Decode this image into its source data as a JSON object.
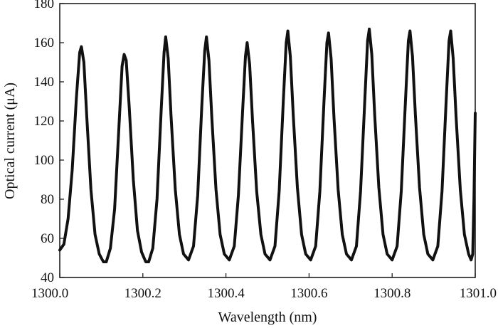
{
  "chart_data": {
    "type": "line",
    "title": "",
    "xlabel": "Wavelength (nm)",
    "ylabel": "Optical current (μA)",
    "xlim": [
      1300.0,
      1301.0
    ],
    "ylim": [
      40,
      180
    ],
    "xticks": [
      "1300.0",
      "1300.2",
      "1300.4",
      "1300.6",
      "1300.8",
      "1301.0"
    ],
    "yticks": [
      "40",
      "60",
      "80",
      "100",
      "120",
      "140",
      "160",
      "180"
    ],
    "grid": false,
    "legend": "none",
    "line_color": "#111111",
    "series": [
      {
        "points": [
          [
            1300.0,
            54
          ],
          [
            1300.01,
            57
          ],
          [
            1300.02,
            70
          ],
          [
            1300.03,
            95
          ],
          [
            1300.04,
            132
          ],
          [
            1300.048,
            155
          ],
          [
            1300.052,
            158
          ],
          [
            1300.058,
            150
          ],
          [
            1300.065,
            122
          ],
          [
            1300.075,
            85
          ],
          [
            1300.085,
            62
          ],
          [
            1300.095,
            52
          ],
          [
            1300.105,
            48
          ],
          [
            1300.112,
            48
          ],
          [
            1300.122,
            55
          ],
          [
            1300.132,
            75
          ],
          [
            1300.142,
            115
          ],
          [
            1300.15,
            148
          ],
          [
            1300.155,
            154
          ],
          [
            1300.16,
            151
          ],
          [
            1300.167,
            128
          ],
          [
            1300.177,
            90
          ],
          [
            1300.187,
            64
          ],
          [
            1300.197,
            53
          ],
          [
            1300.207,
            48
          ],
          [
            1300.214,
            48
          ],
          [
            1300.224,
            55
          ],
          [
            1300.234,
            80
          ],
          [
            1300.244,
            125
          ],
          [
            1300.251,
            155
          ],
          [
            1300.255,
            163
          ],
          [
            1300.261,
            152
          ],
          [
            1300.268,
            122
          ],
          [
            1300.278,
            85
          ],
          [
            1300.288,
            62
          ],
          [
            1300.298,
            52
          ],
          [
            1300.31,
            49
          ],
          [
            1300.322,
            56
          ],
          [
            1300.332,
            82
          ],
          [
            1300.342,
            128
          ],
          [
            1300.349,
            156
          ],
          [
            1300.353,
            163
          ],
          [
            1300.359,
            151
          ],
          [
            1300.366,
            122
          ],
          [
            1300.376,
            85
          ],
          [
            1300.386,
            62
          ],
          [
            1300.396,
            52
          ],
          [
            1300.408,
            49
          ],
          [
            1300.42,
            56
          ],
          [
            1300.43,
            82
          ],
          [
            1300.44,
            125
          ],
          [
            1300.447,
            153
          ],
          [
            1300.451,
            160
          ],
          [
            1300.457,
            149
          ],
          [
            1300.464,
            120
          ],
          [
            1300.474,
            84
          ],
          [
            1300.484,
            62
          ],
          [
            1300.494,
            52
          ],
          [
            1300.506,
            49
          ],
          [
            1300.518,
            56
          ],
          [
            1300.528,
            84
          ],
          [
            1300.538,
            130
          ],
          [
            1300.545,
            160
          ],
          [
            1300.549,
            166
          ],
          [
            1300.555,
            153
          ],
          [
            1300.562,
            123
          ],
          [
            1300.572,
            86
          ],
          [
            1300.582,
            62
          ],
          [
            1300.592,
            52
          ],
          [
            1300.604,
            49
          ],
          [
            1300.616,
            56
          ],
          [
            1300.626,
            84
          ],
          [
            1300.636,
            130
          ],
          [
            1300.643,
            160
          ],
          [
            1300.647,
            165
          ],
          [
            1300.653,
            152
          ],
          [
            1300.66,
            122
          ],
          [
            1300.67,
            85
          ],
          [
            1300.68,
            62
          ],
          [
            1300.69,
            52
          ],
          [
            1300.702,
            49
          ],
          [
            1300.714,
            56
          ],
          [
            1300.724,
            84
          ],
          [
            1300.734,
            130
          ],
          [
            1300.741,
            161
          ],
          [
            1300.745,
            167
          ],
          [
            1300.751,
            154
          ],
          [
            1300.758,
            123
          ],
          [
            1300.768,
            86
          ],
          [
            1300.778,
            62
          ],
          [
            1300.788,
            52
          ],
          [
            1300.8,
            49
          ],
          [
            1300.812,
            56
          ],
          [
            1300.822,
            84
          ],
          [
            1300.832,
            130
          ],
          [
            1300.839,
            161
          ],
          [
            1300.843,
            166
          ],
          [
            1300.849,
            153
          ],
          [
            1300.856,
            123
          ],
          [
            1300.866,
            86
          ],
          [
            1300.876,
            62
          ],
          [
            1300.886,
            52
          ],
          [
            1300.898,
            49
          ],
          [
            1300.91,
            56
          ],
          [
            1300.92,
            84
          ],
          [
            1300.93,
            130
          ],
          [
            1300.937,
            161
          ],
          [
            1300.941,
            166
          ],
          [
            1300.947,
            152
          ],
          [
            1300.954,
            122
          ],
          [
            1300.964,
            85
          ],
          [
            1300.974,
            62
          ],
          [
            1300.984,
            52
          ],
          [
            1300.99,
            49
          ],
          [
            1300.994,
            52
          ],
          [
            1300.997,
            80
          ],
          [
            1301.0,
            124
          ]
        ]
      }
    ]
  }
}
